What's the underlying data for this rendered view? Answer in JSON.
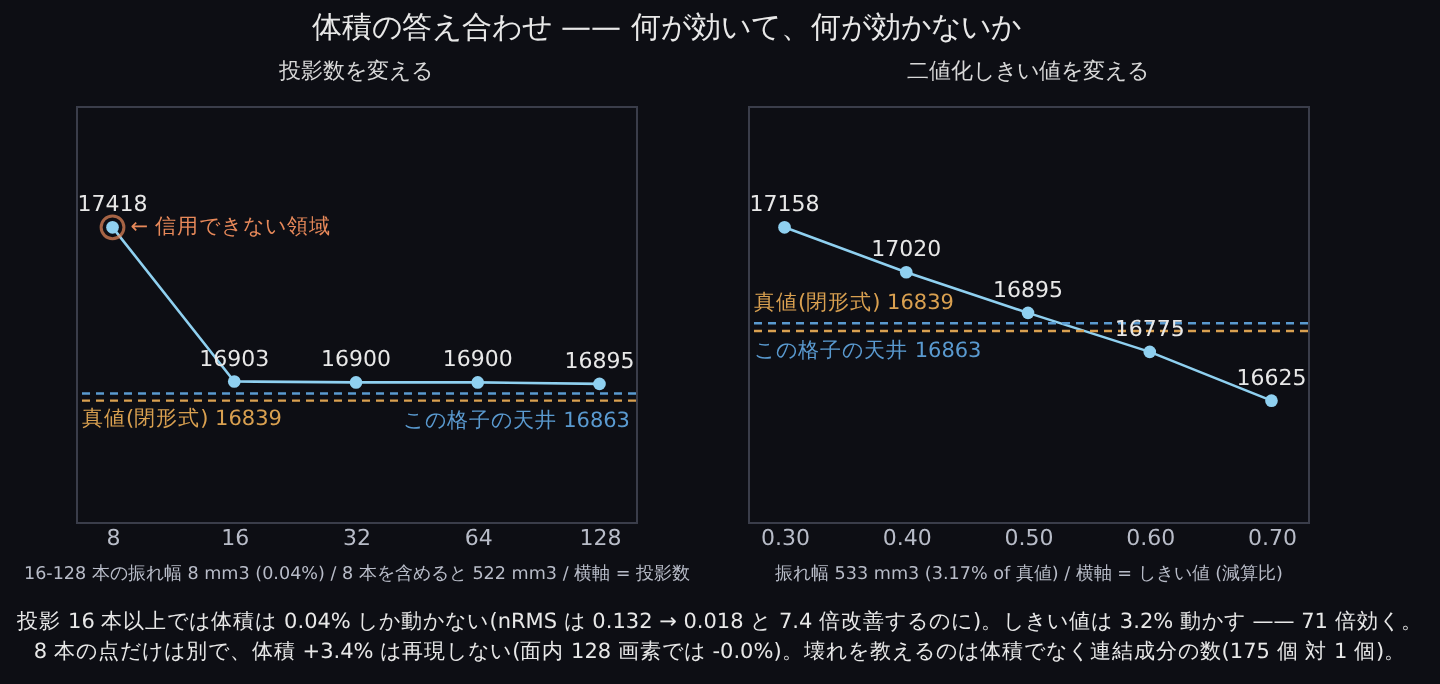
{
  "chart_data": [
    {
      "type": "line",
      "title": "体積の答え合わせ —— 何が効いて、何が効かないか",
      "subtitle": "投影数を変える",
      "xlabel": "16-128 本の振れ幅 8 mm3 (0.04%) / 8 本を含めると 522 mm3 / 横軸 = 投影数",
      "categories": [
        "8",
        "16",
        "32",
        "64",
        "128"
      ],
      "series": [
        {
          "color": "#8fd0f0",
          "values": [
            17418,
            16903,
            16900,
            16900,
            16895
          ]
        }
      ],
      "ref_lines": [
        {
          "axis": "y",
          "value": 16839,
          "label": "真値(閉形式) 16839",
          "color": "#d9a050",
          "line_style": "dashed"
        },
        {
          "axis": "y",
          "value": 16863,
          "label": "この格子の天井 16863",
          "color": "#5a9ad0",
          "line_style": "dashed"
        }
      ],
      "annotations": [
        {
          "text": "← 信用できない領域",
          "x": "8",
          "y": 17418
        },
        "投影 16 本以上では体積は 0.04% しか動かない(nRMS は 0.132 → 0.018 と 7.4 倍改善するのに)。しきい値は 3.2% 動かす —— 71 倍効く。",
        "8 本の点だけは別で、体積 +3.4% は再現しない(面内 128 画素では -0.0%)。壊れを教えるのは体積でなく連結成分の数(175 個 対 1 個)。"
      ],
      "data_labels": true,
      "marker": "circle",
      "line_style": "solid",
      "grid": false,
      "tick_labels": "x"
    },
    {
      "type": "line",
      "subtitle": "二値化しきい値を変える",
      "xlabel": "振れ幅 533 mm3 (3.17% of 真値) / 横軸 = しきい値 (減算比)",
      "categories": [
        "0.30",
        "0.40",
        "0.50",
        "0.60",
        "0.70"
      ],
      "series": [
        {
          "color": "#8fd0f0",
          "values": [
            17158,
            17020,
            16895,
            16775,
            16625
          ]
        }
      ],
      "ref_lines": [
        {
          "axis": "y",
          "value": 16839,
          "label": "真値(閉形式) 16839",
          "color": "#d9a050",
          "line_style": "dashed"
        },
        {
          "axis": "y",
          "value": 16863,
          "label": "この格子の天井 16863",
          "color": "#5a9ad0",
          "line_style": "dashed"
        }
      ],
      "data_labels": true,
      "marker": "circle",
      "line_style": "solid",
      "grid": false,
      "tick_labels": "x"
    }
  ]
}
